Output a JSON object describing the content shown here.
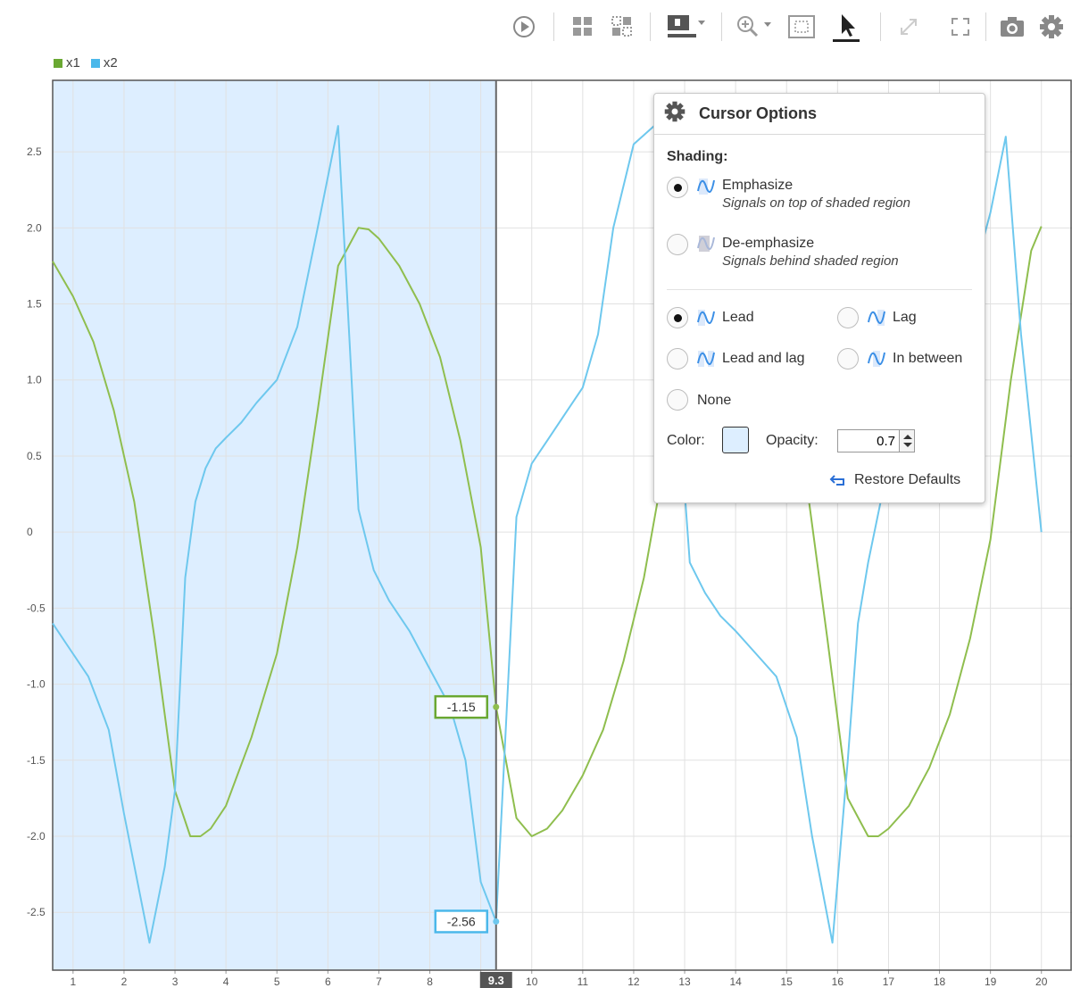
{
  "toolbar": {
    "icons": [
      "play-icon",
      "layout-grid-icon",
      "layout-split-icon",
      "legend-dropdown-icon",
      "zoom-dropdown-icon",
      "fit-view-icon",
      "pointer-icon",
      "expand-icon",
      "fullscreen-icon",
      "camera-icon",
      "gear-icon"
    ]
  },
  "cursor_options": {
    "title": "Cursor Options",
    "shading_label": "Shading:",
    "emphasize_label": "Emphasize",
    "emphasize_desc": "Signals on top of shaded region",
    "deemphasize_label": "De-emphasize",
    "deemphasize_desc": "Signals behind shaded region",
    "lead_label": "Lead",
    "lag_label": "Lag",
    "lead_and_lag_label": "Lead and lag",
    "in_between_label": "In between",
    "none_label": "None",
    "color_label": "Color:",
    "opacity_label": "Opacity:",
    "opacity_value": "0.7",
    "restore_label": "Restore Defaults",
    "shading_selected": "Emphasize",
    "region_selected": "Lead",
    "shade_color": "#ddeeff"
  },
  "chart_data": {
    "type": "line",
    "xlim": [
      0.6,
      20.6
    ],
    "ylim": [
      -2.88,
      2.97
    ],
    "x_ticks": [
      1,
      2,
      3,
      4,
      5,
      6,
      7,
      8,
      9,
      10,
      11,
      12,
      13,
      14,
      15,
      16,
      17,
      18,
      19,
      20
    ],
    "x_tick_labels": [
      "1",
      "2",
      "3",
      "4",
      "5",
      "6",
      "7",
      "8",
      "",
      "10",
      "11",
      "12",
      "13",
      "14",
      "15",
      "16",
      "17",
      "18",
      "19",
      "20"
    ],
    "y_ticks": [
      -2.5,
      -2.0,
      -1.5,
      -1.0,
      -0.5,
      0,
      0.5,
      1.0,
      1.5,
      2.0,
      2.5
    ],
    "y_tick_labels": [
      "-2.5",
      "-2.0",
      "-1.5",
      "-1.0",
      "-0.5",
      "0",
      "0.5",
      "1.0",
      "1.5",
      "2.0",
      "2.5"
    ],
    "grid": true,
    "legend_position": "top-left",
    "cursor": {
      "x": 9.3,
      "label": "9.3",
      "x1_value": "-1.15",
      "x2_value": "-2.56"
    },
    "series": [
      {
        "name": "x1",
        "color": "#8fbe4e",
        "x": [
          0.6,
          1.0,
          1.4,
          1.8,
          2.2,
          2.6,
          3.0,
          3.3,
          3.5,
          3.7,
          4.0,
          4.5,
          5.0,
          5.4,
          5.8,
          6.2,
          6.6,
          6.8,
          7.0,
          7.4,
          7.8,
          8.2,
          8.6,
          9.0,
          9.3,
          9.7,
          10.0,
          10.3,
          10.6,
          11.0,
          11.4,
          11.8,
          12.2,
          12.6,
          13.0,
          13.4,
          13.8,
          14.2,
          14.6,
          15.0,
          15.4,
          15.8,
          16.2,
          16.6,
          16.8,
          17.0,
          17.4,
          17.8,
          18.2,
          18.6,
          19.0,
          19.4,
          19.8,
          20.0
        ],
        "y": [
          1.78,
          1.55,
          1.25,
          0.8,
          0.2,
          -0.7,
          -1.7,
          -2.0,
          -2.0,
          -1.95,
          -1.8,
          -1.35,
          -0.8,
          -0.1,
          0.8,
          1.75,
          2.0,
          1.99,
          1.93,
          1.75,
          1.5,
          1.15,
          0.6,
          -0.1,
          -1.15,
          -1.88,
          -2.0,
          -1.95,
          -1.83,
          -1.6,
          -1.3,
          -0.85,
          -0.3,
          0.45,
          1.1,
          1.6,
          1.95,
          2.0,
          1.85,
          1.3,
          0.3,
          -0.7,
          -1.75,
          -2.0,
          -2.0,
          -1.95,
          -1.8,
          -1.55,
          -1.2,
          -0.7,
          -0.05,
          1.0,
          1.85,
          2.01
        ]
      },
      {
        "name": "x2",
        "color": "#6ec8ee",
        "x": [
          0.6,
          0.9,
          1.3,
          1.7,
          2.0,
          2.5,
          2.8,
          3.0,
          3.2,
          3.4,
          3.6,
          3.8,
          4.0,
          4.3,
          4.6,
          5.0,
          5.4,
          5.8,
          6.2,
          6.6,
          6.9,
          7.2,
          7.6,
          8.0,
          8.4,
          8.7,
          9.0,
          9.3,
          9.7,
          10.0,
          10.3,
          10.6,
          11.0,
          11.3,
          11.6,
          12.0,
          12.4,
          12.8,
          13.1,
          13.4,
          13.7,
          14.0,
          14.4,
          14.8,
          15.2,
          15.5,
          15.9,
          16.2,
          16.4,
          16.6,
          17.0,
          17.4,
          17.8,
          18.2,
          18.6,
          19.0,
          19.3,
          19.6,
          20.0
        ],
        "y": [
          -0.6,
          -0.75,
          -0.95,
          -1.3,
          -1.85,
          -2.7,
          -2.2,
          -1.7,
          -0.3,
          0.2,
          0.42,
          0.55,
          0.62,
          0.72,
          0.85,
          1.0,
          1.35,
          2.0,
          2.67,
          0.15,
          -0.25,
          -0.45,
          -0.65,
          -0.9,
          -1.15,
          -1.5,
          -2.3,
          -2.56,
          0.1,
          0.45,
          0.6,
          0.75,
          0.95,
          1.3,
          2.0,
          2.55,
          2.67,
          1.2,
          -0.2,
          -0.4,
          -0.55,
          -0.65,
          -0.8,
          -0.95,
          -1.35,
          -2.0,
          -2.7,
          -1.5,
          -0.6,
          -0.2,
          0.45,
          0.7,
          0.9,
          1.2,
          1.6,
          2.1,
          2.6,
          1.3,
          0.0
        ]
      }
    ]
  }
}
